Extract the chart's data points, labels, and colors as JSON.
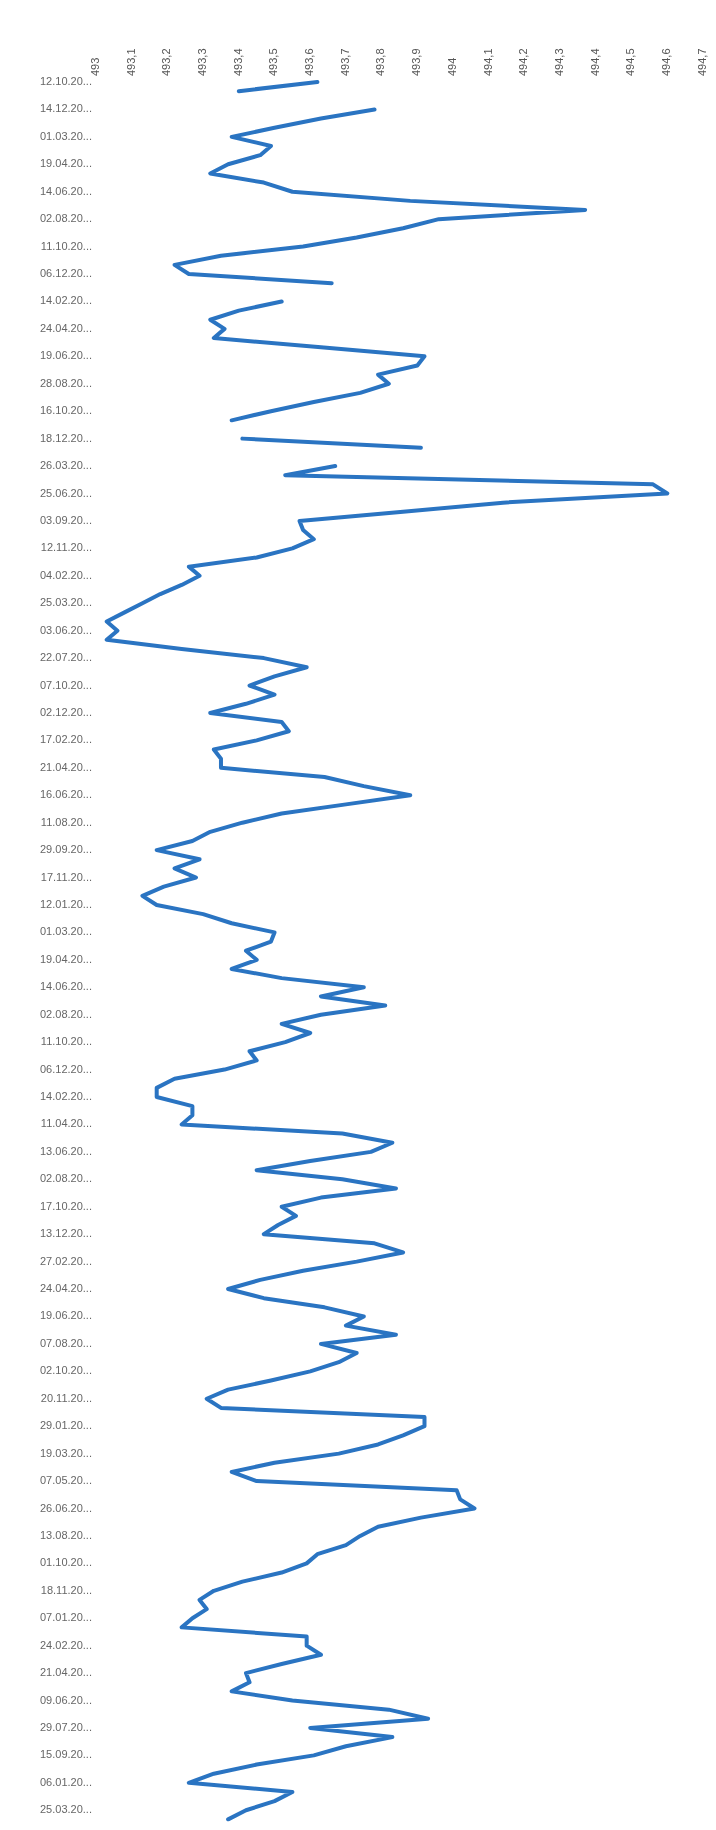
{
  "chart_data": {
    "type": "line",
    "orientation": "horizontal",
    "categories": [
      "12.10.20...",
      null,
      null,
      "14.12.20...",
      null,
      null,
      "01.03.20...",
      null,
      null,
      "19.04.20...",
      null,
      null,
      "14.06.20...",
      null,
      null,
      "02.08.20...",
      null,
      null,
      "11.10.20...",
      null,
      null,
      "06.12.20...",
      null,
      null,
      "14.02.20...",
      null,
      null,
      "24.04.20...",
      null,
      null,
      "19.06.20...",
      null,
      null,
      "28.08.20...",
      null,
      null,
      "16.10.20...",
      null,
      null,
      "18.12.20...",
      null,
      null,
      "26.03.20...",
      null,
      null,
      "25.06.20...",
      null,
      null,
      "03.09.20...",
      null,
      null,
      "12.11.20...",
      null,
      null,
      "04.02.20...",
      null,
      null,
      "25.03.20...",
      null,
      null,
      "03.06.20...",
      null,
      null,
      "22.07.20...",
      null,
      null,
      "07.10.20...",
      null,
      null,
      "02.12.20...",
      null,
      null,
      "17.02.20...",
      null,
      null,
      "21.04.20...",
      null,
      null,
      "16.06.20...",
      null,
      null,
      "11.08.20...",
      null,
      null,
      "29.09.20...",
      null,
      null,
      "17.11.20...",
      null,
      null,
      "12.01.20...",
      null,
      null,
      "01.03.20...",
      null,
      null,
      "19.04.20...",
      null,
      null,
      "14.06.20...",
      null,
      null,
      "02.08.20...",
      null,
      null,
      "11.10.20...",
      null,
      null,
      "06.12.20...",
      null,
      null,
      "14.02.20...",
      null,
      null,
      "11.04.20...",
      null,
      null,
      "13.06.20...",
      null,
      null,
      "02.08.20...",
      null,
      null,
      "17.10.20...",
      null,
      null,
      "13.12.20...",
      null,
      null,
      "27.02.20...",
      null,
      null,
      "24.04.20...",
      null,
      null,
      "19.06.20...",
      null,
      null,
      "07.08.20...",
      null,
      null,
      "02.10.20...",
      null,
      null,
      "20.11.20...",
      null,
      null,
      "29.01.20...",
      null,
      null,
      "19.03.20...",
      null,
      null,
      "07.05.20...",
      null,
      null,
      "26.06.20...",
      null,
      null,
      "13.08.20...",
      null,
      null,
      "01.10.20...",
      null,
      null,
      "18.11.20...",
      null,
      null,
      "07.01.20...",
      null,
      null,
      "24.02.20...",
      null,
      null,
      "21.04.20...",
      null,
      null,
      "09.06.20...",
      null,
      null,
      "29.07.20...",
      null,
      null,
      "15.09.20...",
      null,
      null,
      "06.01.20...",
      null,
      null,
      "25.03.20...",
      null
    ],
    "series": [
      {
        "color": "#2a74c2",
        "values": [
          493.62,
          493.4,
          null,
          493.78,
          493.63,
          493.5,
          493.38,
          493.49,
          493.46,
          493.37,
          493.32,
          493.47,
          493.55,
          493.88,
          494.37,
          493.96,
          493.86,
          493.73,
          493.58,
          493.35,
          493.22,
          493.26,
          493.66,
          null,
          493.52,
          493.4,
          493.32,
          493.36,
          493.33,
          493.63,
          493.92,
          493.9,
          493.79,
          493.82,
          493.74,
          493.61,
          493.49,
          493.38,
          null,
          493.41,
          493.91,
          null,
          493.67,
          493.53,
          494.56,
          494.6,
          494.14,
          493.86,
          493.57,
          493.58,
          493.61,
          493.55,
          493.45,
          493.26,
          493.29,
          493.24,
          493.18,
          493.13,
          493.08,
          493.03,
          493.06,
          493.03,
          493.24,
          493.47,
          493.59,
          493.5,
          493.43,
          493.5,
          493.42,
          493.32,
          493.52,
          493.54,
          493.45,
          493.33,
          493.35,
          493.35,
          493.64,
          493.75,
          493.88,
          493.7,
          493.52,
          493.41,
          493.32,
          493.27,
          493.17,
          493.29,
          493.22,
          493.28,
          493.19,
          493.13,
          493.17,
          493.3,
          493.38,
          493.5,
          493.49,
          493.42,
          493.45,
          493.38,
          493.52,
          493.75,
          493.63,
          493.81,
          493.63,
          493.52,
          493.6,
          493.53,
          493.43,
          493.45,
          493.36,
          493.22,
          493.17,
          493.17,
          493.27,
          493.27,
          493.24,
          493.69,
          493.83,
          493.77,
          493.6,
          493.45,
          493.69,
          493.84,
          493.63,
          493.52,
          493.56,
          493.51,
          493.47,
          493.78,
          493.86,
          493.73,
          493.58,
          493.46,
          493.37,
          493.47,
          493.64,
          493.75,
          493.7,
          493.84,
          493.63,
          493.73,
          493.68,
          493.6,
          493.49,
          493.37,
          493.31,
          493.35,
          493.92,
          493.92,
          493.86,
          493.79,
          493.68,
          493.5,
          493.38,
          493.45,
          494.01,
          494.02,
          494.06,
          493.91,
          493.79,
          493.74,
          493.7,
          493.62,
          493.59,
          493.52,
          493.41,
          493.33,
          493.29,
          493.31,
          493.27,
          493.24,
          493.59,
          493.59,
          493.63,
          493.52,
          493.42,
          493.43,
          493.38,
          493.55,
          493.82,
          493.93,
          493.6,
          493.83,
          493.7,
          493.61,
          493.45,
          493.33,
          493.26,
          493.55,
          493.5,
          493.42,
          493.37
        ]
      }
    ],
    "xlim": [
      493,
      494.7
    ],
    "xticks": [
      493,
      {
        "value": 493.1,
        "label": "493,1"
      },
      {
        "value": 493.2,
        "label": "493,2"
      },
      {
        "value": 493.3,
        "label": "493,3"
      },
      {
        "value": 493.4,
        "label": "493,4"
      },
      {
        "value": 493.5,
        "label": "493,5"
      },
      {
        "value": 493.6,
        "label": "493,6"
      },
      {
        "value": 493.7,
        "label": "493,7"
      },
      {
        "value": 493.8,
        "label": "493,8"
      },
      {
        "value": 493.9,
        "label": "493,9"
      },
      494,
      {
        "value": 494.1,
        "label": "494,1"
      },
      {
        "value": 494.2,
        "label": "494,2"
      },
      {
        "value": 494.3,
        "label": "494,3"
      },
      {
        "value": 494.4,
        "label": "494,4"
      },
      {
        "value": 494.5,
        "label": "494,5"
      },
      {
        "value": 494.6,
        "label": "494,6"
      },
      {
        "value": 494.7,
        "label": "494,7"
      }
    ],
    "grid": false,
    "legend": false,
    "line_style": "solid"
  }
}
